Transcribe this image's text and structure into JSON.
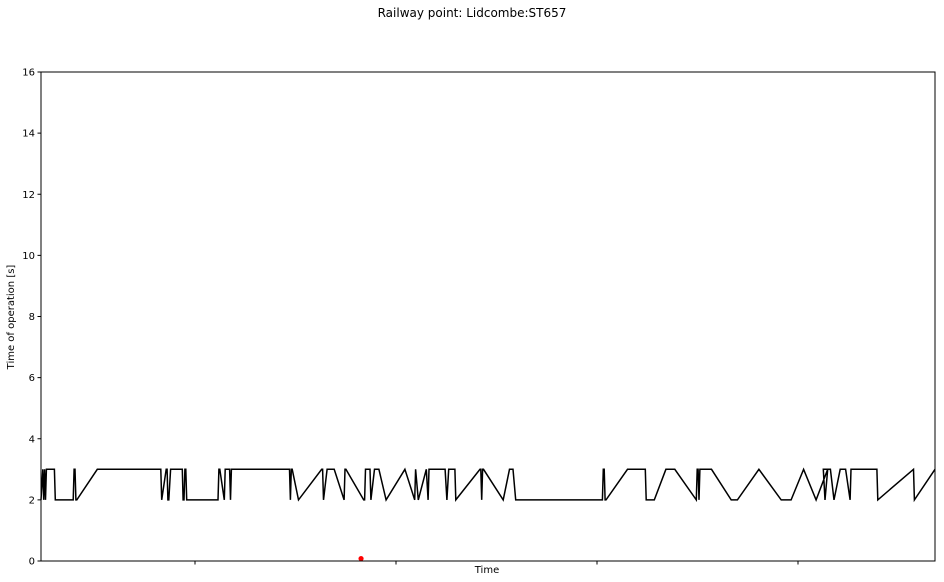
{
  "chart_data": {
    "type": "line",
    "title": "Railway point: Lidcombe:ST657",
    "xlabel": "Time",
    "ylabel": "Time of operation [s]",
    "ylim": [
      0,
      16
    ],
    "xlim": [
      0,
      1000
    ],
    "yticks": [
      0,
      2,
      4,
      6,
      8,
      10,
      12,
      14,
      16
    ],
    "ytick_labels": [
      "0",
      "2",
      "4",
      "6",
      "8",
      "10",
      "12",
      "14",
      "16"
    ],
    "xtick_positions": [
      195,
      396,
      597,
      798
    ],
    "xtick_labels": [
      "",
      "",
      "",
      ""
    ],
    "grid": false,
    "series": [
      {
        "color": "#000000",
        "x": [
          0,
          2,
          3,
          4,
          5,
          6,
          10,
          15,
          16,
          36,
          37,
          38,
          39,
          40,
          63,
          134,
          135,
          140,
          141,
          142,
          143,
          145,
          158,
          159,
          160,
          161,
          162,
          163,
          198,
          199,
          200,
          205,
          206,
          211,
          212,
          213,
          278,
          279,
          280,
          281,
          288,
          314,
          315,
          316,
          320,
          321,
          323,
          328,
          339,
          340,
          341,
          361,
          362,
          363,
          368,
          369,
          373,
          378,
          386,
          407,
          418,
          419,
          422,
          431,
          433,
          434,
          436,
          447,
          452,
          454,
          456,
          463,
          464,
          491,
          492,
          493,
          494,
          495,
          517,
          524,
          526,
          527,
          528,
          531,
          628,
          629,
          630,
          631,
          632,
          656,
          676,
          677,
          686,
          699,
          709,
          733,
          734,
          735,
          736,
          737,
          750,
          772,
          779,
          803,
          828,
          839,
          853,
          867,
          880,
          875,
          877,
          880,
          883,
          887,
          894,
          900,
          905,
          906,
          935,
          936,
          976,
          977,
          1000
        ],
        "y": [
          2,
          3,
          2,
          3,
          2,
          3,
          3,
          3,
          2,
          2,
          3,
          3,
          2,
          2,
          3,
          3,
          2,
          3,
          3,
          2,
          2,
          3,
          3,
          2,
          2,
          3,
          3,
          2,
          2,
          3,
          3,
          2,
          3,
          3,
          2,
          3,
          3,
          2,
          3,
          3,
          2,
          3,
          3,
          2,
          3,
          3,
          3,
          3,
          2,
          3,
          3,
          2,
          2,
          3,
          3,
          2,
          3,
          3,
          2,
          3,
          2,
          3,
          2,
          3,
          2,
          3,
          3,
          3,
          3,
          2,
          3,
          3,
          2,
          3,
          3,
          2,
          3,
          3,
          2,
          3,
          3,
          3,
          3,
          2,
          2,
          3,
          3,
          2,
          2,
          3,
          3,
          2,
          2,
          3,
          3,
          2,
          3,
          3,
          2,
          3,
          3,
          2,
          2,
          3,
          2,
          2,
          3,
          2,
          3,
          3,
          2,
          3,
          3,
          2,
          3,
          3,
          2,
          3,
          3,
          2,
          3,
          2,
          3
        ]
      }
    ],
    "markers": [
      {
        "x": 358,
        "y": 0.08,
        "color": "#ff0000"
      }
    ]
  }
}
